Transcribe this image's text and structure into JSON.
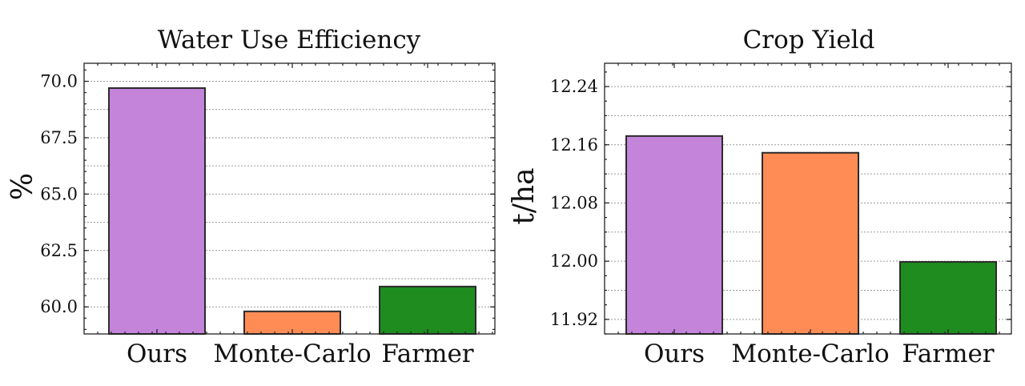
{
  "chart_data": [
    {
      "type": "bar",
      "title": "Water Use Efficiency",
      "xlabel": "",
      "ylabel": "%",
      "categories": [
        "Ours",
        "Monte-Carlo",
        "Farmer"
      ],
      "values": [
        69.7,
        59.8,
        60.9
      ],
      "colors": [
        "#c384da",
        "#ff8c55",
        "#1e8c1e"
      ],
      "ylim": [
        58.8,
        70.8
      ],
      "yticks": [
        60.0,
        62.5,
        65.0,
        67.5,
        70.0
      ],
      "ytick_labels": [
        "60.0",
        "62.5",
        "65.0",
        "67.5",
        "70.0"
      ],
      "minor_step": 0.5,
      "grid": true
    },
    {
      "type": "bar",
      "title": "Crop Yield",
      "xlabel": "",
      "ylabel": "t/ha",
      "categories": [
        "Ours",
        "Monte-Carlo",
        "Farmer"
      ],
      "values": [
        12.172,
        12.149,
        11.999
      ],
      "colors": [
        "#c384da",
        "#ff8c55",
        "#1e8c1e"
      ],
      "ylim": [
        11.9,
        12.272
      ],
      "yticks": [
        11.92,
        12.0,
        12.08,
        12.16,
        12.24
      ],
      "ytick_labels": [
        "11.92",
        "12.00",
        "12.08",
        "12.16",
        "12.24"
      ],
      "minor_step": 0.02,
      "grid": true
    }
  ]
}
